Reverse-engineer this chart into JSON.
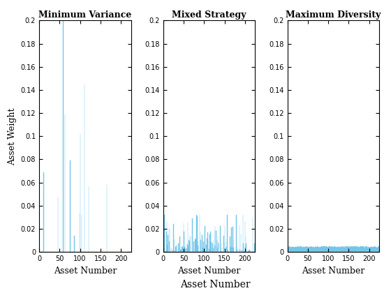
{
  "n_assets": 225,
  "ylim": [
    0,
    0.2
  ],
  "xlim": [
    0,
    225
  ],
  "titles": [
    "Minimum Variance",
    "Mixed Strategy",
    "Maximum Diversity"
  ],
  "xlabel": "Asset Number",
  "ylabel": "Asset Weight",
  "bar_color": "#74C6E8",
  "yticks": [
    0,
    0.02,
    0.04,
    0.06,
    0.08,
    0.1,
    0.12,
    0.14,
    0.16,
    0.18,
    0.2
  ],
  "xticks": [
    0,
    50,
    100,
    150,
    200
  ],
  "mv_nonzero_indices": [
    10,
    45,
    58,
    62,
    75,
    85,
    98,
    100,
    103,
    110,
    120,
    165
  ],
  "mv_values": [
    0.069,
    0.047,
    0.2,
    0.119,
    0.079,
    0.014,
    0.033,
    0.102,
    0.032,
    0.145,
    0.057,
    0.058
  ]
}
